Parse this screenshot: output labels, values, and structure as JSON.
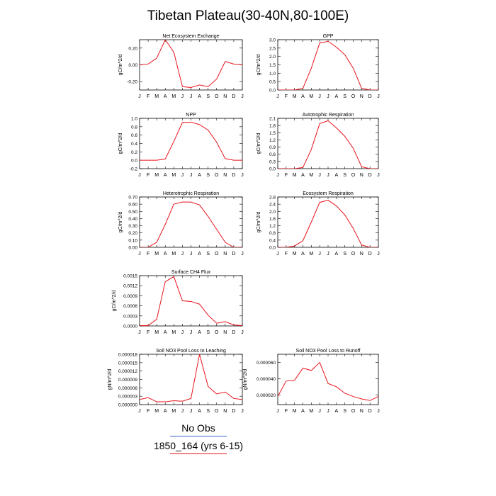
{
  "title": "Tibetan Plateau(30-40N,80-100E)",
  "months": [
    "J",
    "F",
    "M",
    "A",
    "M",
    "J",
    "J",
    "A",
    "S",
    "O",
    "N",
    "D",
    "J"
  ],
  "colors": {
    "series": "#e8141c",
    "obs": "#3b64c8"
  },
  "legend": {
    "items": [
      {
        "label": "No Obs",
        "color": "#3b64c8"
      },
      {
        "label": "1850_164 (yrs 6-15)",
        "color": "#e8141c"
      }
    ]
  },
  "chart_data": [
    {
      "id": "nee",
      "type": "line",
      "title": "Net Ecosystem Exchange",
      "ylabel": "gC/m^2/d",
      "ylim": [
        -0.3,
        0.3
      ],
      "ticks": [
        -0.2,
        0.0,
        0.2
      ],
      "tick_labels": [
        "-0.20",
        "0.00",
        "0.20"
      ],
      "x": [
        "J",
        "F",
        "M",
        "A",
        "M",
        "J",
        "J",
        "A",
        "S",
        "O",
        "N",
        "D",
        "J"
      ],
      "values": [
        0.0,
        0.01,
        0.08,
        0.3,
        0.15,
        -0.26,
        -0.27,
        -0.24,
        -0.26,
        -0.17,
        0.04,
        0.01,
        0.0
      ]
    },
    {
      "id": "gpp",
      "type": "line",
      "title": "GPP",
      "ylabel": "gC/m^2/d",
      "ylim": [
        0,
        3.0
      ],
      "ticks": [
        0,
        0.5,
        1.0,
        1.5,
        2.0,
        2.5,
        3.0
      ],
      "tick_labels": [
        "0.0",
        "0.5",
        "1.0",
        "1.5",
        "2.0",
        "2.5",
        "3.0"
      ],
      "x": [
        "J",
        "F",
        "M",
        "A",
        "M",
        "J",
        "J",
        "A",
        "S",
        "O",
        "N",
        "D",
        "J"
      ],
      "values": [
        0.0,
        0.0,
        0.0,
        0.1,
        1.3,
        2.8,
        2.9,
        2.55,
        2.1,
        1.3,
        0.1,
        0.0,
        0.0
      ]
    },
    {
      "id": "npp",
      "type": "line",
      "title": "NPP",
      "ylabel": "gC/m^2/d",
      "ylim": [
        -0.2,
        1.0
      ],
      "ticks": [
        -0.2,
        0.0,
        0.2,
        0.4,
        0.6,
        0.8,
        1.0
      ],
      "tick_labels": [
        "-0.2",
        "0.0",
        "0.2",
        "0.4",
        "0.6",
        "0.8",
        "1.0"
      ],
      "x": [
        "J",
        "F",
        "M",
        "A",
        "M",
        "J",
        "J",
        "A",
        "S",
        "O",
        "N",
        "D",
        "J"
      ],
      "values": [
        0.0,
        0.0,
        0.0,
        0.03,
        0.45,
        0.9,
        0.91,
        0.85,
        0.72,
        0.43,
        0.04,
        0.0,
        0.0
      ]
    },
    {
      "id": "ar",
      "type": "line",
      "title": "Autotrophic Respiration",
      "ylabel": "gC/m^2/d",
      "ylim": [
        0,
        2.1
      ],
      "ticks": [
        0,
        0.3,
        0.6,
        0.9,
        1.2,
        1.5,
        1.8,
        2.1
      ],
      "tick_labels": [
        "0.0",
        "0.3",
        "0.6",
        "0.9",
        "1.2",
        "1.5",
        "1.8",
        "2.1"
      ],
      "x": [
        "J",
        "F",
        "M",
        "A",
        "M",
        "J",
        "J",
        "A",
        "S",
        "O",
        "N",
        "D",
        "J"
      ],
      "values": [
        0.0,
        0.0,
        0.0,
        0.05,
        0.8,
        1.88,
        2.0,
        1.7,
        1.35,
        0.85,
        0.08,
        0.0,
        0.0
      ]
    },
    {
      "id": "hr",
      "type": "line",
      "title": "Heterotrophic Respiration",
      "ylabel": "gC/m^2/d",
      "ylim": [
        0,
        0.7
      ],
      "ticks": [
        0,
        0.1,
        0.2,
        0.3,
        0.4,
        0.5,
        0.6,
        0.7
      ],
      "tick_labels": [
        "0.00",
        "0.10",
        "0.20",
        "0.30",
        "0.40",
        "0.50",
        "0.60",
        "0.70"
      ],
      "x": [
        "J",
        "F",
        "M",
        "A",
        "M",
        "J",
        "J",
        "A",
        "S",
        "O",
        "N",
        "D",
        "J"
      ],
      "values": [
        0.0,
        0.0,
        0.07,
        0.32,
        0.6,
        0.63,
        0.63,
        0.59,
        0.43,
        0.25,
        0.07,
        0.0,
        0.0
      ]
    },
    {
      "id": "er",
      "type": "line",
      "title": "Ecosystem Respiration",
      "ylabel": "gC/m^2/d",
      "ylim": [
        0,
        2.8
      ],
      "ticks": [
        0,
        0.4,
        0.8,
        1.2,
        1.6,
        2.0,
        2.4,
        2.8
      ],
      "tick_labels": [
        "0.0",
        "0.4",
        "0.8",
        "1.2",
        "1.6",
        "2.0",
        "2.4",
        "2.8"
      ],
      "x": [
        "J",
        "F",
        "M",
        "A",
        "M",
        "J",
        "J",
        "A",
        "S",
        "O",
        "N",
        "D",
        "J"
      ],
      "values": [
        0.0,
        0.0,
        0.07,
        0.37,
        1.4,
        2.5,
        2.62,
        2.3,
        1.8,
        1.05,
        0.13,
        0.0,
        0.0
      ]
    },
    {
      "id": "ch4",
      "type": "line",
      "title": "Surface CH4 Flux",
      "ylabel": "gC/m^2/d",
      "ylim": [
        0,
        0.0015
      ],
      "ticks": [
        0,
        0.0003,
        0.0006,
        0.0009,
        0.0012,
        0.0015
      ],
      "tick_labels": [
        "0.0000",
        "0.0003",
        "0.0006",
        "0.0009",
        "0.0012",
        "0.0015"
      ],
      "x": [
        "J",
        "F",
        "M",
        "A",
        "M",
        "J",
        "J",
        "A",
        "S",
        "O",
        "N",
        "D",
        "J"
      ],
      "values": [
        1e-05,
        1e-05,
        0.0002,
        0.00132,
        0.00147,
        0.00075,
        0.00073,
        0.00065,
        0.00032,
        8e-05,
        0.00013,
        3e-05,
        1e-05
      ]
    },
    {
      "id": "leach",
      "type": "line",
      "title": "Soil NO3 Pool Loss to Leaching",
      "ylabel": "gN/m^2/d",
      "ylim": [
        0,
        1.8e-05
      ],
      "ticks": [
        0,
        3e-06,
        6e-06,
        9e-06,
        1.2e-05,
        1.5e-05,
        1.8e-05
      ],
      "tick_labels": [
        "0.000000",
        "0.000003",
        "0.000006",
        "0.000009",
        "0.000012",
        "0.000015",
        "0.000018"
      ],
      "x": [
        "J",
        "F",
        "M",
        "A",
        "M",
        "J",
        "J",
        "A",
        "S",
        "O",
        "N",
        "D",
        "J"
      ],
      "values": [
        1.8e-06,
        2.5e-06,
        1e-06,
        1e-06,
        1.4e-06,
        1.2e-06,
        2.2e-06,
        1.8e-05,
        6.5e-06,
        3.8e-06,
        4.5e-06,
        2.2e-06,
        1.8e-06
      ]
    },
    {
      "id": "runoff",
      "type": "line",
      "title": "Soil NO3 Pool Loss to Runoff",
      "ylabel": "gN/m^2/d",
      "ylim": [
        8e-06,
        7e-05
      ],
      "ticks": [
        2e-05,
        4e-05,
        6e-05
      ],
      "tick_labels": [
        "0.000020",
        "0.000040",
        "0.000060"
      ],
      "x": [
        "J",
        "F",
        "M",
        "A",
        "M",
        "J",
        "J",
        "A",
        "S",
        "O",
        "N",
        "D",
        "J"
      ],
      "values": [
        1.8e-05,
        3.7e-05,
        3.8e-05,
        5.3e-05,
        5e-05,
        6e-05,
        3.4e-05,
        3e-05,
        2.2e-05,
        1.8e-05,
        1.5e-05,
        1.3e-05,
        1.8e-05
      ]
    }
  ]
}
